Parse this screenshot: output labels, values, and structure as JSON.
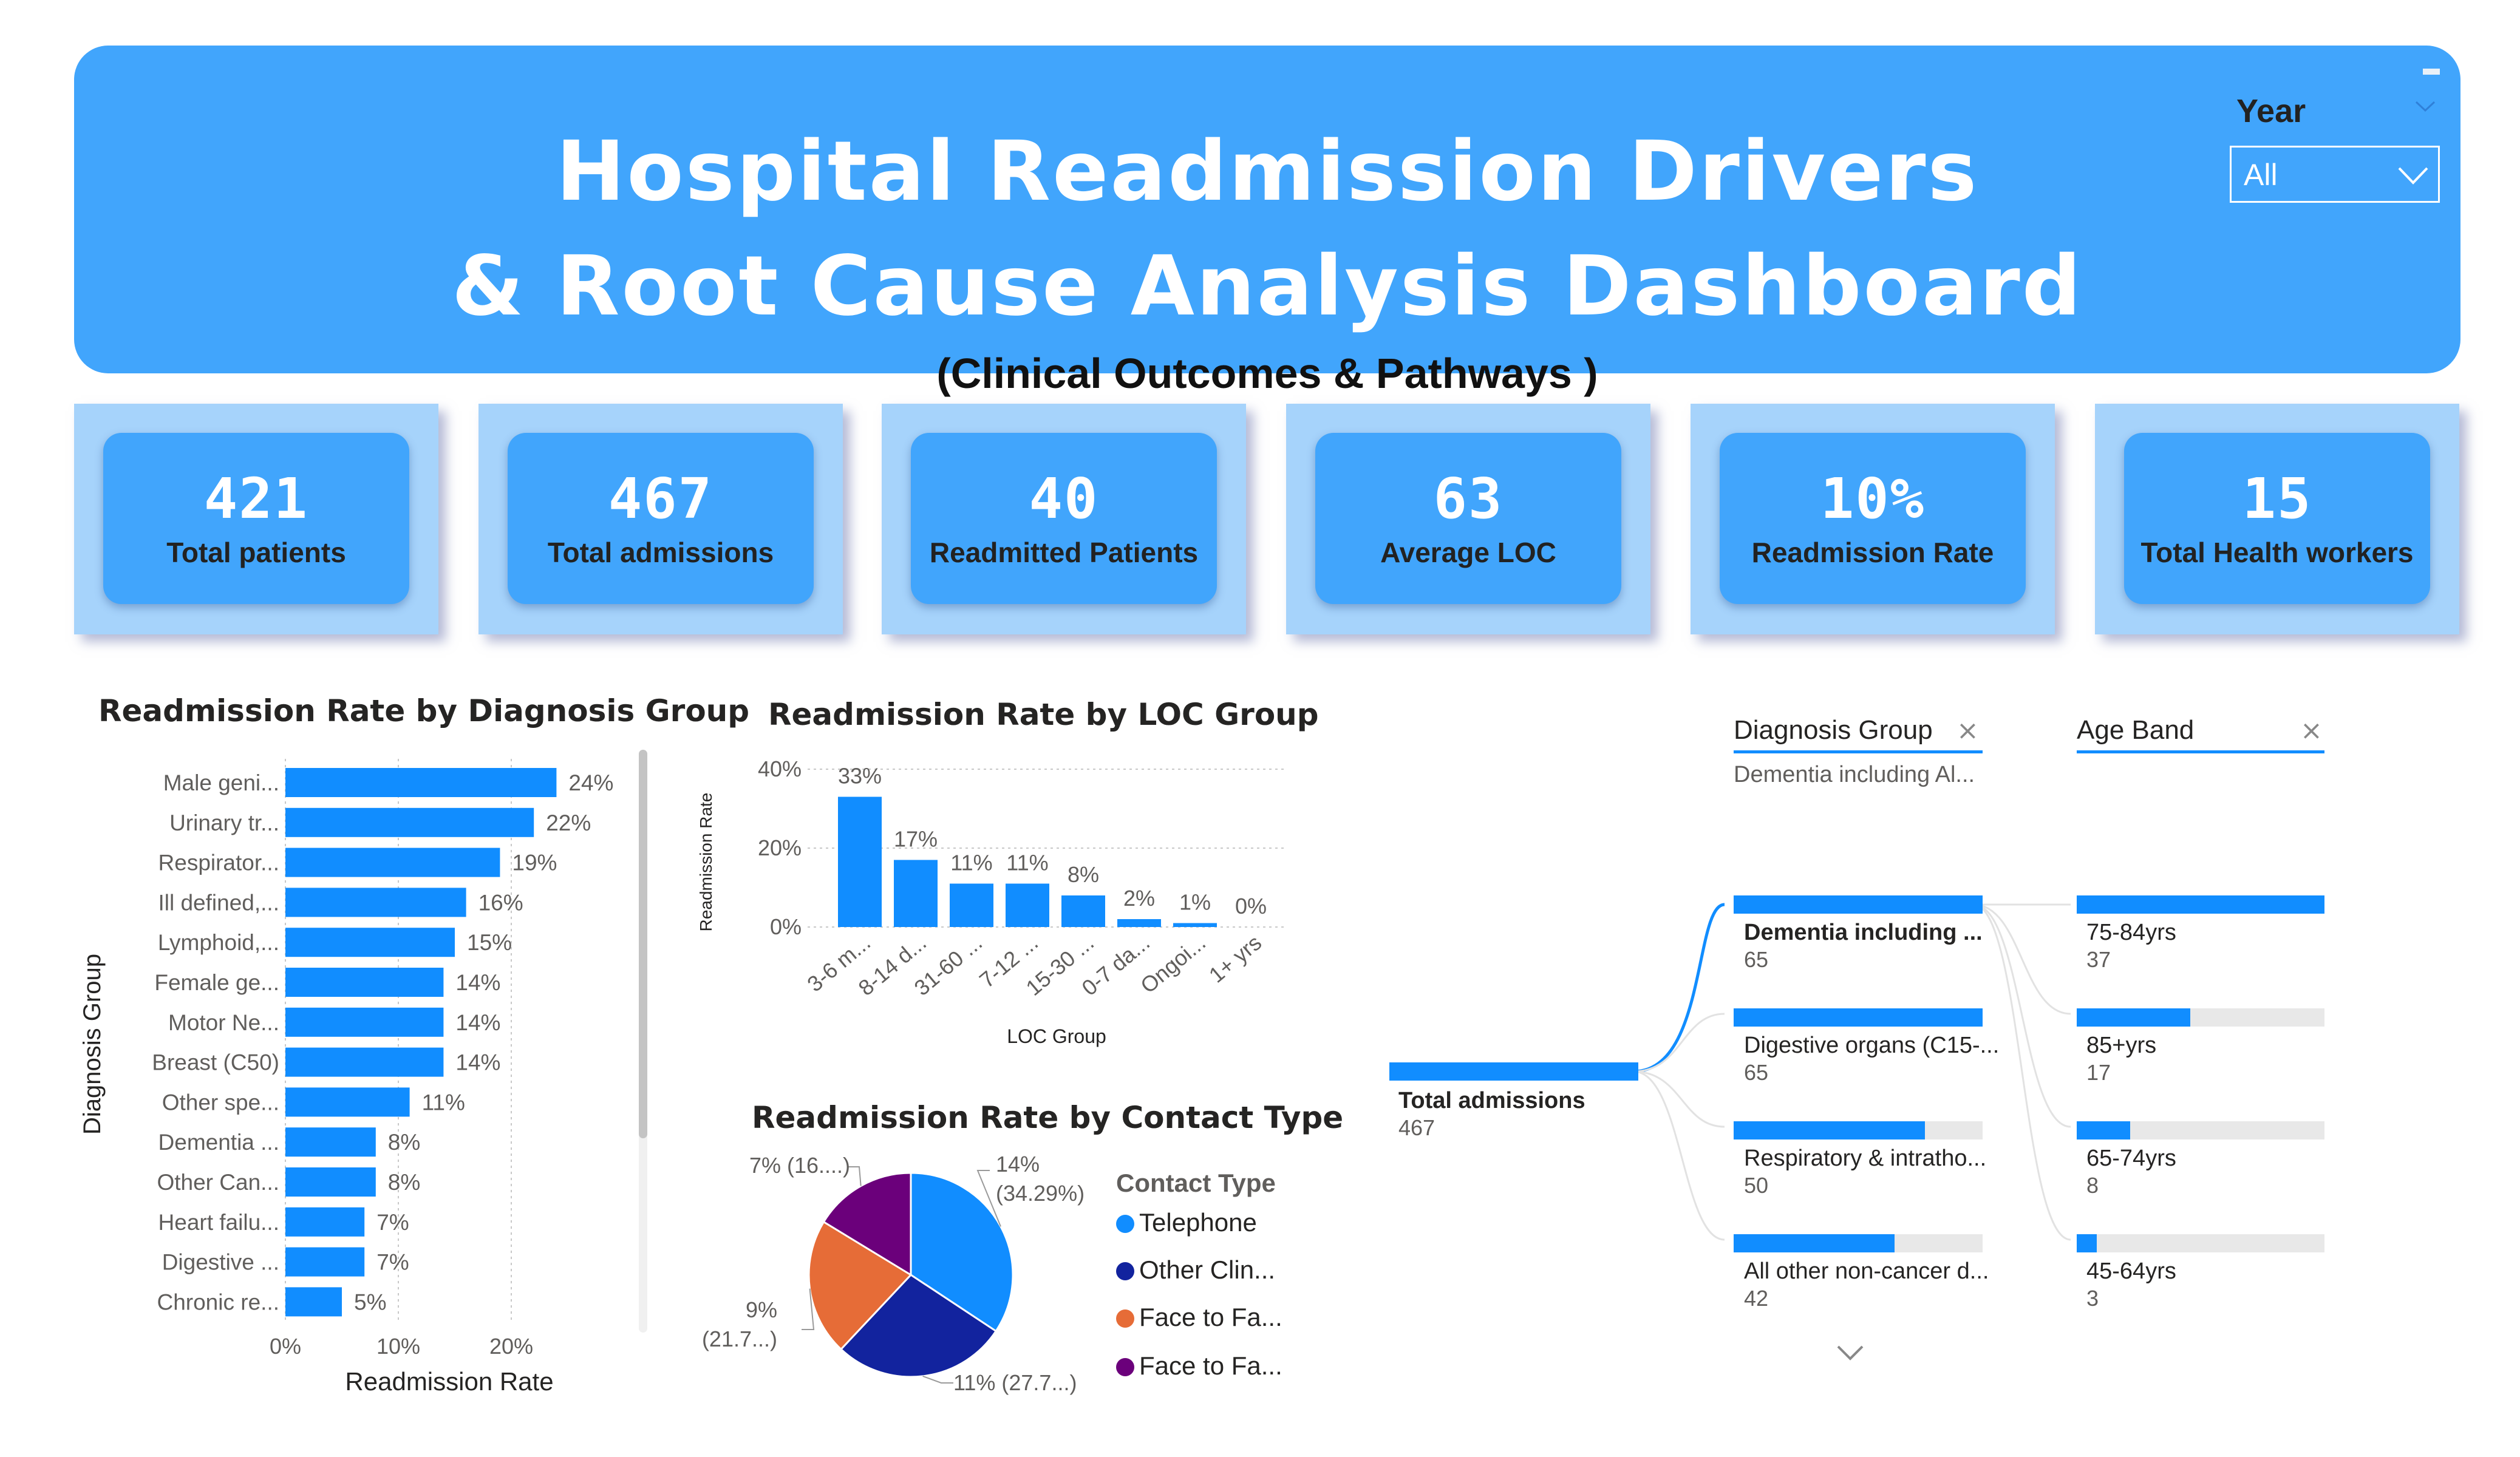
{
  "header": {
    "title_line1": "Hospital Readmission Drivers",
    "title_line2": "& Root Cause Analysis Dashboard",
    "subtitle": "(Clinical Outcomes & Pathways )",
    "year_filter": {
      "label": "Year",
      "value": "All"
    }
  },
  "kpis": [
    {
      "value": "421",
      "label": "Total patients"
    },
    {
      "value": "467",
      "label": "Total admissions"
    },
    {
      "value": "40",
      "label": "Readmitted Patients"
    },
    {
      "value": "63",
      "label": "Average LOC"
    },
    {
      "value": "10%",
      "label": "Readmission Rate"
    },
    {
      "value": "15",
      "label": "Total Health workers"
    }
  ],
  "chart_data": [
    {
      "type": "bar",
      "orientation": "horizontal",
      "title": "Readmission Rate by Diagnosis Group",
      "xlabel": "Readmission Rate",
      "ylabel": "Diagnosis Group",
      "categories": [
        "Male geni...",
        "Urinary tr...",
        "Respirator...",
        "Ill defined,...",
        "Lymphoid,...",
        "Female ge...",
        "Motor Ne...",
        "Breast (C50)",
        "Other spe...",
        "Dementia ...",
        "Other Can...",
        "Heart failu...",
        "Digestive ...",
        "Chronic re..."
      ],
      "values": [
        24,
        22,
        19,
        16,
        15,
        14,
        14,
        14,
        11,
        8,
        8,
        7,
        7,
        5
      ],
      "data_labels": [
        "24%",
        "22%",
        "19%",
        "16%",
        "15%",
        "14%",
        "14%",
        "14%",
        "11%",
        "8%",
        "8%",
        "7%",
        "7%",
        "5%"
      ],
      "x_ticks": [
        "0%",
        "10%",
        "20%"
      ],
      "xlim": [
        0,
        25
      ],
      "color": "#118dff"
    },
    {
      "type": "bar",
      "title": "Readmission Rate by LOC Group",
      "xlabel": "LOC Group",
      "ylabel": "Readmission Rate",
      "categories": [
        "3-6 m...",
        "8-14 d...",
        "31-60 ...",
        "7-12 ...",
        "15-30 ...",
        "0-7 da...",
        "Ongoi...",
        "1+ yrs"
      ],
      "values": [
        33,
        17,
        11,
        11,
        8,
        2,
        1,
        0
      ],
      "data_labels": [
        "33%",
        "17%",
        "11%",
        "11%",
        "8%",
        "2%",
        "1%",
        "0%"
      ],
      "y_ticks": [
        "0%",
        "20%",
        "40%"
      ],
      "ylim": [
        0,
        40
      ],
      "color": "#118dff"
    },
    {
      "type": "pie",
      "title": "Readmission Rate by Contact Type",
      "legend_title": "Contact Type",
      "slices": [
        {
          "name": "Telephone",
          "value": 34.29,
          "label_a": "14%",
          "label_b": "(34.29%)",
          "color": "#118dff"
        },
        {
          "name": "Other Clin...",
          "value": 27.7,
          "label_a": "11% (27.7...)",
          "label_b": "",
          "color": "#12239e"
        },
        {
          "name": "Face to Fa...",
          "value": 21.7,
          "label_a": "9%",
          "label_b": "(21.7...)",
          "color": "#e66c37"
        },
        {
          "name": "Face to Fa...",
          "value": 16.3,
          "label_a": "7% (16....)",
          "label_b": "",
          "color": "#6b007b"
        }
      ]
    }
  ],
  "decomposition_tree": {
    "root": {
      "label": "Total admissions",
      "value": "467"
    },
    "level1": {
      "header": "Diagnosis Group",
      "selected": "Dementia including Al...",
      "nodes": [
        {
          "label": "Dementia including ...",
          "value": 65,
          "value_text": "65"
        },
        {
          "label": "Digestive organs (C15-...",
          "value": 65,
          "value_text": "65"
        },
        {
          "label": "Respiratory & intratho...",
          "value": 50,
          "value_text": "50"
        },
        {
          "label": "All other non-cancer d...",
          "value": 42,
          "value_text": "42"
        }
      ]
    },
    "level2": {
      "header": "Age Band",
      "nodes": [
        {
          "label": "75-84yrs",
          "value": 37,
          "value_text": "37"
        },
        {
          "label": "85+yrs",
          "value": 17,
          "value_text": "17"
        },
        {
          "label": "65-74yrs",
          "value": 8,
          "value_text": "8"
        },
        {
          "label": "45-64yrs",
          "value": 3,
          "value_text": "3"
        }
      ]
    }
  }
}
